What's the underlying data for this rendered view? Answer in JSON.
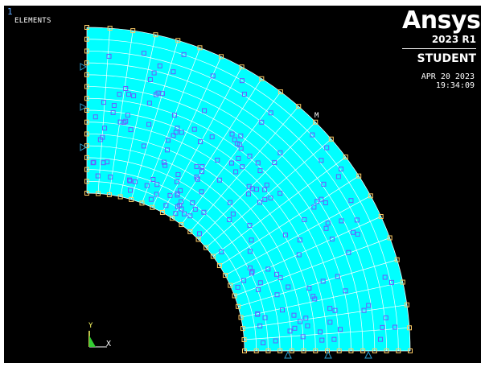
{
  "window": {
    "number": "1",
    "plot_label": "ELEMENTS"
  },
  "logo": {
    "word": "Ansys",
    "version": "2023 R1",
    "edition": "STUDENT"
  },
  "timestamp": {
    "date": "APR 20 2023",
    "time": "19:34:09"
  },
  "annotation": {
    "marker": "M"
  },
  "triad": {
    "x_label": "X",
    "y_label": "Y"
  },
  "colors": {
    "background": "#000000",
    "mesh_fill": "#00ffff",
    "mesh_lines": "#ffffff",
    "node_markers": "#6a5cff",
    "constraint_markers": "#ffcc66",
    "support_symbols": "#2aa0d0"
  },
  "icons": {
    "x_support": "triangle-support-icon",
    "y_support": "triangle-support-icon",
    "axis_triad": "axis-triad-icon"
  }
}
